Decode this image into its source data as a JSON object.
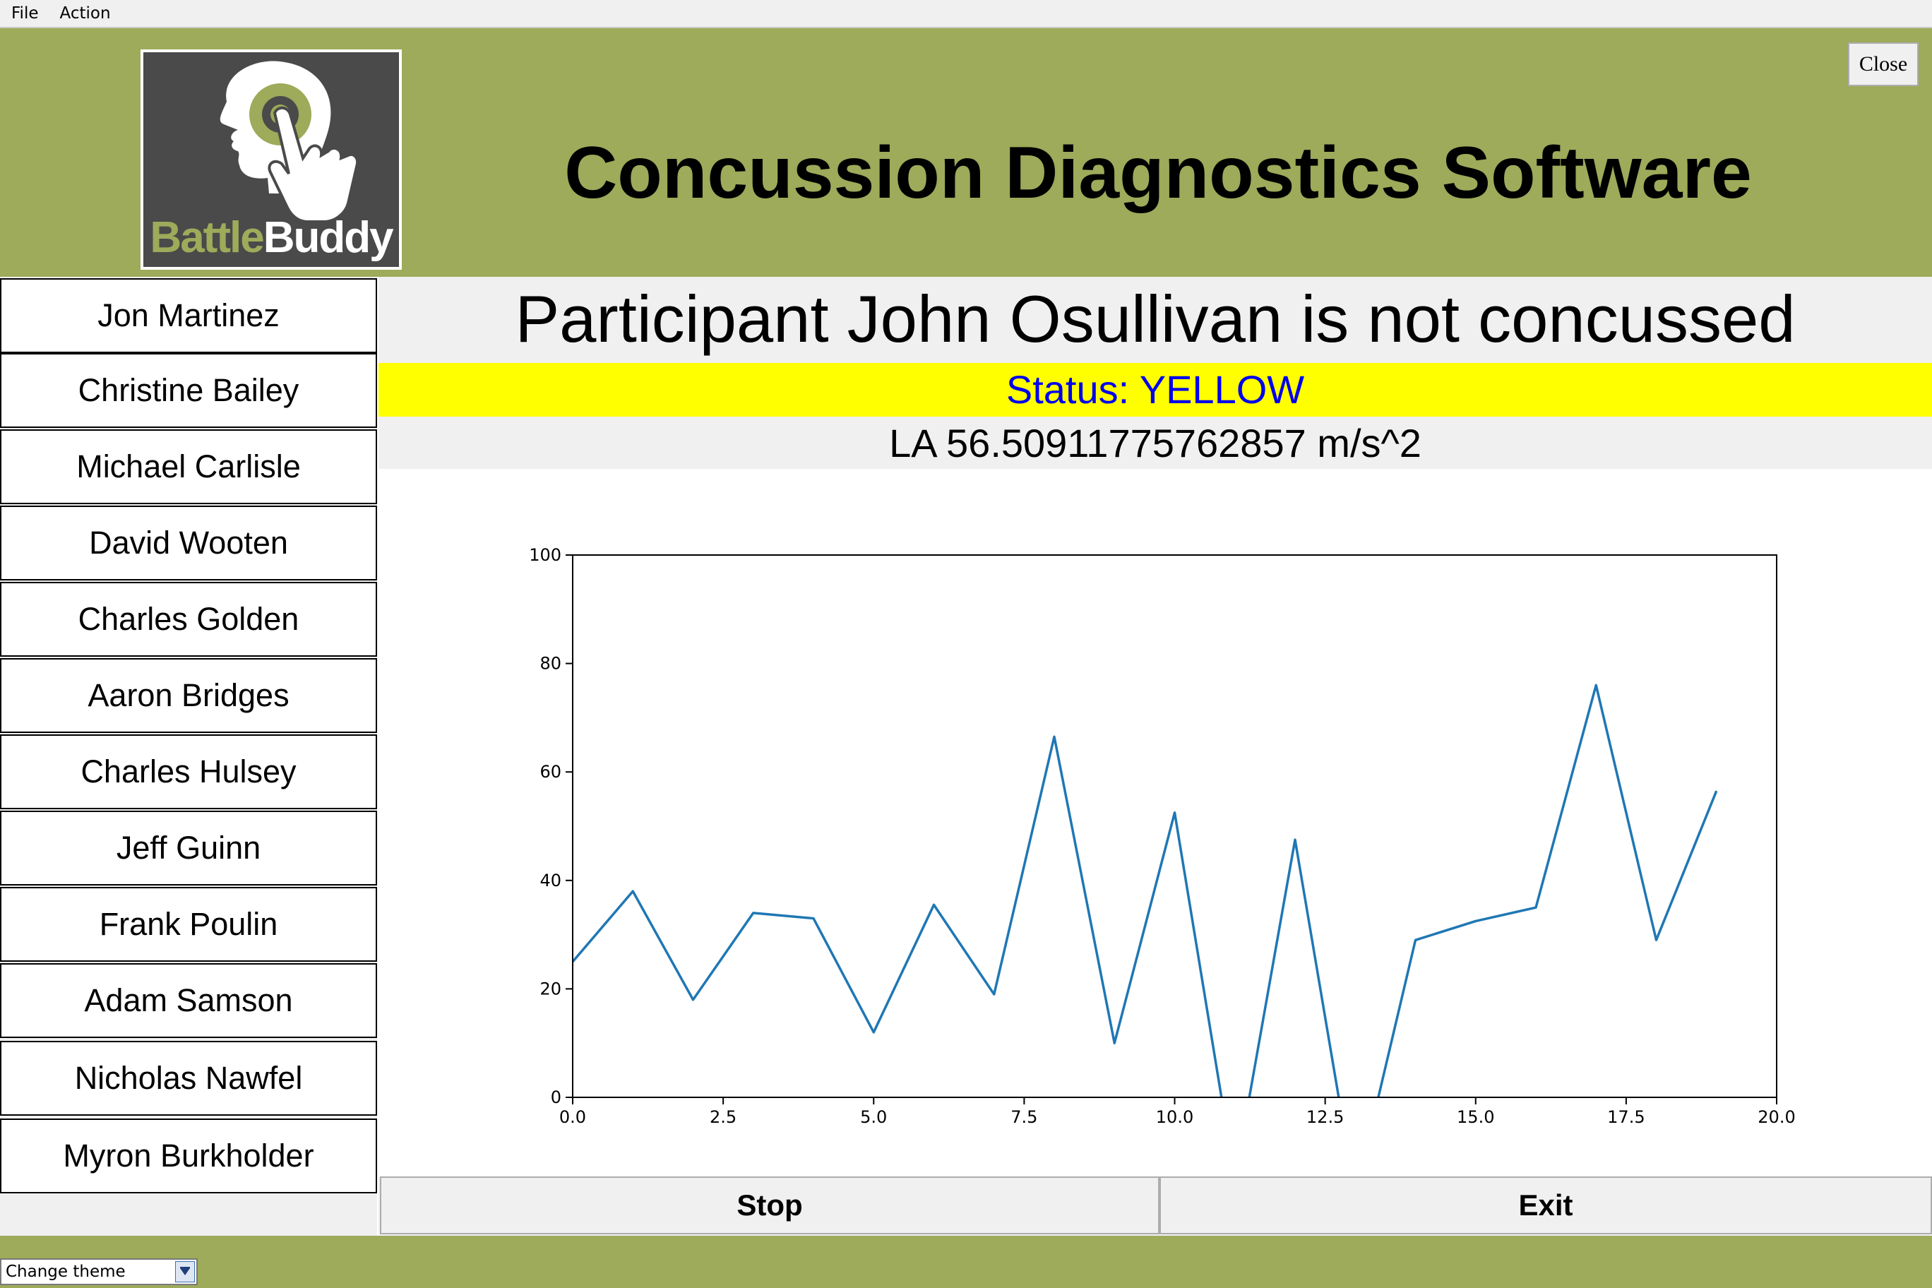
{
  "menu": {
    "file": "File",
    "action": "Action"
  },
  "header": {
    "logo_text_part1": "Battle",
    "logo_text_part2": "Buddy",
    "title": "Concussion Diagnostics Software",
    "close_label": "Close"
  },
  "participants": [
    "Jon Martinez",
    "Christine Bailey",
    "Michael Carlisle",
    "David Wooten",
    "Charles Golden",
    "Aaron Bridges",
    "Charles Hulsey",
    "Jeff Guinn",
    "Frank Poulin",
    "Adam Samson",
    "Nicholas Nawfel",
    "Myron Burkholder"
  ],
  "result": {
    "verdict": "Participant John Osullivan is not concussed",
    "status": "Status: YELLOW",
    "la": "LA 56.50911775762857 m/s^2"
  },
  "colors": {
    "header_bg": "#9dab5a",
    "status_bg": "#ffff00",
    "status_text": "#0000ee",
    "line": "#1f77b4"
  },
  "chart_data": {
    "type": "line",
    "x": [
      0,
      1,
      2,
      3,
      4,
      5,
      6,
      7,
      8,
      9,
      10,
      11,
      12,
      13,
      14,
      15,
      16,
      17,
      18,
      19
    ],
    "values": [
      25,
      38,
      18,
      34,
      33,
      12,
      35.5,
      19,
      66.5,
      10,
      52.5,
      -15,
      47.5,
      -18,
      29,
      32.5,
      35,
      76,
      29,
      56.5
    ],
    "xlim": [
      0,
      20
    ],
    "ylim": [
      0,
      100
    ],
    "xticks": [
      "0.0",
      "2.5",
      "5.0",
      "7.5",
      "10.0",
      "12.5",
      "15.0",
      "17.5",
      "20.0"
    ],
    "yticks": [
      "0",
      "20",
      "40",
      "60",
      "80",
      "100"
    ],
    "grid": false
  },
  "controls": {
    "stop": "Stop",
    "exit": "Exit"
  },
  "footer": {
    "theme_select": "Change theme"
  }
}
